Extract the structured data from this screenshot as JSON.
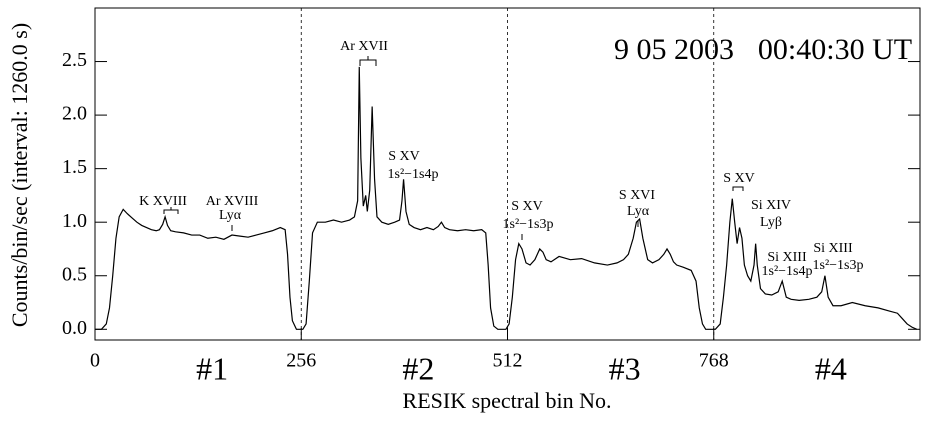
{
  "chart_data": {
    "type": "line",
    "date": "9 05 2003",
    "time": "00:40:30 UT",
    "xlabel": "RESIK spectral bin No.",
    "ylabel": "Counts/bin/sec (interval: 1260.0 s)",
    "sections": [
      "#1",
      "#2",
      "#3",
      "#4"
    ],
    "annotations": [
      "K XVIII",
      "Ar XVIII",
      "Lyα",
      "Ar XVII",
      "S XV",
      "1s²−1s4p",
      "S XV",
      "1s²−1s3p",
      "S XVI",
      "Lyα",
      "S XV",
      "Si XIV",
      "Lyβ",
      "Si XIII",
      "1s²−1s4p",
      "Si XIII",
      "1s²−1s3p"
    ],
    "xlim": [
      0,
      1024
    ],
    "ylim": [
      -0.1,
      3.0
    ],
    "xticks": [
      0,
      256,
      512,
      768
    ],
    "yticks": [
      {
        "value": 0,
        "label": "0.0"
      },
      {
        "value": 0.5,
        "label": "0.5"
      },
      {
        "value": 1,
        "label": "1.0"
      },
      {
        "value": 1.5,
        "label": "1.5"
      },
      {
        "value": 2,
        "label": "2.0"
      },
      {
        "value": 2.5,
        "label": "2.5"
      }
    ],
    "section_dividers": true,
    "color": "#000000",
    "x": [
      0,
      8,
      14,
      18,
      22,
      26,
      30,
      35,
      40,
      46,
      52,
      58,
      64,
      70,
      76,
      80,
      84,
      87,
      90,
      94,
      100,
      110,
      120,
      130,
      140,
      150,
      160,
      170,
      180,
      190,
      200,
      210,
      220,
      230,
      236,
      239,
      242,
      245,
      250,
      258,
      262,
      266,
      270,
      276,
      286,
      296,
      306,
      316,
      322,
      326,
      328,
      330,
      333,
      336,
      338,
      341,
      344,
      347,
      350,
      356,
      364,
      372,
      378,
      381,
      383,
      386,
      390,
      396,
      404,
      412,
      420,
      426,
      430,
      434,
      440,
      450,
      460,
      470,
      480,
      485,
      488,
      491,
      495,
      500,
      510,
      514,
      518,
      522,
      526,
      530,
      535,
      540,
      546,
      552,
      556,
      560,
      566,
      576,
      590,
      604,
      620,
      636,
      648,
      656,
      662,
      668,
      672,
      676,
      680,
      686,
      692,
      700,
      706,
      710,
      714,
      718,
      722,
      730,
      740,
      746,
      750,
      754,
      758,
      762,
      770,
      776,
      780,
      784,
      788,
      791,
      794,
      797,
      800,
      803,
      806,
      810,
      814,
      818,
      820,
      822,
      826,
      832,
      840,
      848,
      853,
      858,
      864,
      874,
      886,
      896,
      902,
      906,
      910,
      916,
      926,
      940,
      956,
      972,
      986,
      996,
      1002,
      1008,
      1014,
      1020
    ],
    "values": [
      0.0,
      0.0,
      0.05,
      0.2,
      0.5,
      0.85,
      1.05,
      1.12,
      1.08,
      1.04,
      1.0,
      0.97,
      0.95,
      0.93,
      0.92,
      0.93,
      0.98,
      1.05,
      0.97,
      0.92,
      0.91,
      0.9,
      0.88,
      0.88,
      0.85,
      0.86,
      0.84,
      0.88,
      0.87,
      0.86,
      0.88,
      0.9,
      0.92,
      0.95,
      0.93,
      0.7,
      0.3,
      0.08,
      0.0,
      0.0,
      0.05,
      0.45,
      0.9,
      1.0,
      1.0,
      1.02,
      1.0,
      1.02,
      1.05,
      1.2,
      2.45,
      1.6,
      1.15,
      1.25,
      1.1,
      1.3,
      2.08,
      1.4,
      1.05,
      1.0,
      0.98,
      1.0,
      1.02,
      1.2,
      1.4,
      1.1,
      0.98,
      0.95,
      0.93,
      0.95,
      0.93,
      0.96,
      1.0,
      0.95,
      0.93,
      0.92,
      0.93,
      0.92,
      0.93,
      0.9,
      0.6,
      0.2,
      0.03,
      0.0,
      0.0,
      0.05,
      0.3,
      0.65,
      0.8,
      0.75,
      0.62,
      0.6,
      0.65,
      0.75,
      0.72,
      0.65,
      0.63,
      0.68,
      0.65,
      0.66,
      0.62,
      0.6,
      0.62,
      0.65,
      0.7,
      0.85,
      1.0,
      1.03,
      0.85,
      0.65,
      0.62,
      0.65,
      0.7,
      0.75,
      0.7,
      0.63,
      0.6,
      0.58,
      0.55,
      0.45,
      0.2,
      0.05,
      0.0,
      0.0,
      0.0,
      0.05,
      0.3,
      0.6,
      1.0,
      1.22,
      1.0,
      0.8,
      0.95,
      0.85,
      0.6,
      0.5,
      0.45,
      0.6,
      0.8,
      0.6,
      0.38,
      0.33,
      0.32,
      0.35,
      0.45,
      0.3,
      0.28,
      0.27,
      0.28,
      0.3,
      0.35,
      0.5,
      0.3,
      0.22,
      0.22,
      0.25,
      0.22,
      0.2,
      0.17,
      0.15,
      0.1,
      0.05,
      0.02,
      0.0
    ]
  }
}
